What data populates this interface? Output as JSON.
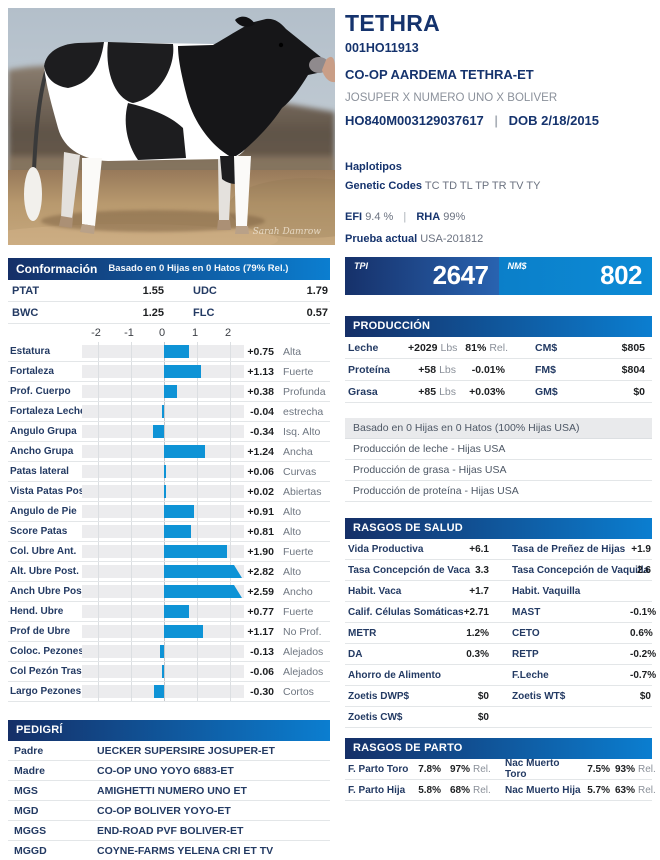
{
  "header": {
    "name": "TETHRA",
    "naab_code": "001HO11913",
    "full_name": "CO-OP AARDEMA TETHRA-ET",
    "lineage": "JOSUPER X NUMERO UNO X BOLIVER",
    "registration": "HO840M003129037617",
    "separator": "|",
    "dob": "DOB 2/18/2015",
    "haplotipos_label": "Haplotipos",
    "genetic_codes_label": "Genetic Codes",
    "genetic_codes": "TC TD TL TP TR TV TY",
    "efi_label": "EFI",
    "efi": "9.4 %",
    "rha_label": "RHA",
    "rha": "99%",
    "prueba_label": "Prueba actual",
    "prueba": "USA-201812"
  },
  "photo": {
    "credit": "Sarah Damrow"
  },
  "scores": {
    "tpi_label": "TPI",
    "tpi": "2647",
    "nm_label": "NM$",
    "nm": "802"
  },
  "conformacion": {
    "title": "Conformación",
    "subtitle": "Basado en 0 Hijas en 0 Hatos (79% Rel.)",
    "summary": [
      {
        "l1": "PTAT",
        "v1": "1.55",
        "l2": "UDC",
        "v2": "1.79"
      },
      {
        "l1": "BWC",
        "v1": "1.25",
        "l2": "FLC",
        "v2": "0.57"
      }
    ],
    "axis_ticks": [
      "-2",
      "-1",
      "0",
      "1",
      "2"
    ],
    "traits": [
      {
        "label": "Estatura",
        "value": 0.75,
        "display": "+0.75",
        "desc": "Alta"
      },
      {
        "label": "Fortaleza",
        "value": 1.13,
        "display": "+1.13",
        "desc": "Fuerte"
      },
      {
        "label": "Prof. Cuerpo",
        "value": 0.38,
        "display": "+0.38",
        "desc": "Profunda"
      },
      {
        "label": "Fortaleza Lechera",
        "value": -0.04,
        "display": "-0.04",
        "desc": "estrecha"
      },
      {
        "label": "Angulo Grupa",
        "value": -0.34,
        "display": "-0.34",
        "desc": "Isq. Alto"
      },
      {
        "label": "Ancho Grupa",
        "value": 1.24,
        "display": "+1.24",
        "desc": "Ancha"
      },
      {
        "label": "Patas lateral",
        "value": 0.06,
        "display": "+0.06",
        "desc": "Curvas"
      },
      {
        "label": "Vista Patas Post.",
        "value": 0.02,
        "display": "+0.02",
        "desc": "Abiertas"
      },
      {
        "label": "Angulo de Pie",
        "value": 0.91,
        "display": "+0.91",
        "desc": "Alto"
      },
      {
        "label": "Score Patas",
        "value": 0.81,
        "display": "+0.81",
        "desc": "Alto"
      },
      {
        "label": "Col. Ubre Ant.",
        "value": 1.9,
        "display": "+1.90",
        "desc": "Fuerte"
      },
      {
        "label": "Alt. Ubre Post.",
        "value": 2.82,
        "display": "+2.82",
        "desc": "Alto"
      },
      {
        "label": "Anch Ubre Pos",
        "value": 2.59,
        "display": "+2.59",
        "desc": "Ancho"
      },
      {
        "label": "Hend. Ubre",
        "value": 0.77,
        "display": "+0.77",
        "desc": "Fuerte"
      },
      {
        "label": "Prof de Ubre",
        "value": 1.17,
        "display": "+1.17",
        "desc": "No Prof."
      },
      {
        "label": "Coloc. Pezones",
        "value": -0.13,
        "display": "-0.13",
        "desc": "Alejados"
      },
      {
        "label": "Col Pezón Tras.",
        "value": -0.06,
        "display": "-0.06",
        "desc": "Alejados"
      },
      {
        "label": "Largo Pezones",
        "value": -0.3,
        "display": "-0.30",
        "desc": "Cortos"
      }
    ]
  },
  "produccion": {
    "title": "PRODUCCIÓN",
    "rows": [
      {
        "label": "Leche",
        "value": "+2029",
        "unit": "Lbs",
        "pct": "81%",
        "pct_suffix": "Rel.",
        "rlabel": "CM$",
        "rvalue": "$805"
      },
      {
        "label": "Proteína",
        "value": "+58",
        "unit": "Lbs",
        "pct": "-0.01%",
        "pct_suffix": "",
        "rlabel": "FM$",
        "rvalue": "$804"
      },
      {
        "label": "Grasa",
        "value": "+85",
        "unit": "Lbs",
        "pct": "+0.03%",
        "pct_suffix": "",
        "rlabel": "GM$",
        "rvalue": "$0"
      }
    ],
    "notes": [
      "Basado en 0 Hijas en 0 Hatos (100% Hijas USA)",
      "Producción de leche - Hijas USA",
      "Producción de grasa - Hijas USA",
      "Producción de proteína - Hijas USA"
    ]
  },
  "salud": {
    "title": "RASGOS DE SALUD",
    "rows": [
      {
        "l1": "Vida Productiva",
        "v1": "+6.1",
        "l2": "Tasa de Preñez de Hijas",
        "v2": "+1.9"
      },
      {
        "l1": "Tasa Concepción de Vaca",
        "v1": "3.3",
        "l2": "Tasa Concepción de Vaquilla",
        "v2": "2.6"
      },
      {
        "l1": "Habit. Vaca",
        "v1": "+1.7",
        "l2": "Habit. Vaquilla",
        "v2": ""
      },
      {
        "l1": "Calif. Células Somáticas",
        "v1": "+2.71",
        "l2": "MAST",
        "v2": "-0.1%"
      },
      {
        "l1": "METR",
        "v1": "1.2%",
        "l2": "CETO",
        "v2": "0.6%"
      },
      {
        "l1": "DA",
        "v1": "0.3%",
        "l2": "RETP",
        "v2": "-0.2%"
      },
      {
        "l1": "Ahorro de Alimento",
        "v1": "",
        "l2": "F.Leche",
        "v2": "-0.7%"
      },
      {
        "l1": "Zoetis DWP$",
        "v1": "$0",
        "l2": "Zoetis WT$",
        "v2": "$0"
      },
      {
        "l1": "Zoetis CW$",
        "v1": "$0",
        "l2": "",
        "v2": ""
      }
    ]
  },
  "pedigri": {
    "title": "PEDIGRÍ",
    "rows": [
      {
        "label": "Padre",
        "value": "UECKER SUPERSIRE JOSUPER-ET"
      },
      {
        "label": "Madre",
        "value": "CO-OP UNO YOYO 6883-ET"
      },
      {
        "label": "MGS",
        "value": "AMIGHETTI NUMERO UNO ET"
      },
      {
        "label": "MGD",
        "value": "CO-OP BOLIVER YOYO-ET"
      },
      {
        "label": "MGGS",
        "value": "END-ROAD PVF BOLIVER-ET"
      },
      {
        "label": "MGGD",
        "value": "COYNE-FARMS YELENA CRI ET TV"
      }
    ]
  },
  "parto": {
    "title": "RASGOS DE PARTO",
    "rel_suffix": "Rel.",
    "rows": [
      {
        "l1": "F. Parto Toro",
        "v1": "7.8%",
        "r1": "97%",
        "l2": "Nac Muerto Toro",
        "v2": "7.5%",
        "r2": "93%"
      },
      {
        "l1": "F. Parto Hija",
        "v1": "5.8%",
        "r1": "68%",
        "l2": "Nac Muerto Hija",
        "v2": "5.7%",
        "r2": "63%"
      }
    ]
  },
  "colors": {
    "navy_text": "#15336d",
    "bar_blue": "#0e93d6",
    "header_gradient_start": "#152f67",
    "header_gradient_end": "#0b7ed0",
    "tpi_gradient_start": "#16316a",
    "tpi_gradient_end": "#2963b0",
    "nm_blue": "#0c87d1",
    "gray_text": "#8a9099"
  },
  "chart_data": {
    "type": "bar",
    "orientation": "horizontal",
    "title": "Conformación — Basado en 0 Hijas en 0 Hatos (79% Rel.)",
    "xlim": [
      -2.4,
      2.4
    ],
    "x_ticks": [
      -2,
      -1,
      0,
      1,
      2
    ],
    "grid": true,
    "categories": [
      "Estatura",
      "Fortaleza",
      "Prof. Cuerpo",
      "Fortaleza Lechera",
      "Angulo Grupa",
      "Ancho Grupa",
      "Patas lateral",
      "Vista Patas Post.",
      "Angulo de Pie",
      "Score Patas",
      "Col. Ubre Ant.",
      "Alt. Ubre Post.",
      "Anch Ubre Pos",
      "Hend. Ubre",
      "Prof de Ubre",
      "Coloc. Pezones",
      "Col Pezón Tras.",
      "Largo Pezones"
    ],
    "values": [
      0.75,
      1.13,
      0.38,
      -0.04,
      -0.34,
      1.24,
      0.06,
      0.02,
      0.91,
      0.81,
      1.9,
      2.82,
      2.59,
      0.77,
      1.17,
      -0.13,
      -0.06,
      -0.3
    ],
    "descriptors": [
      "Alta",
      "Fuerte",
      "Profunda",
      "estrecha",
      "Isq. Alto",
      "Ancha",
      "Curvas",
      "Abiertas",
      "Alto",
      "Alto",
      "Fuerte",
      "Alto",
      "Ancho",
      "Fuerte",
      "No Prof.",
      "Alejados",
      "Alejados",
      "Cortos"
    ]
  }
}
